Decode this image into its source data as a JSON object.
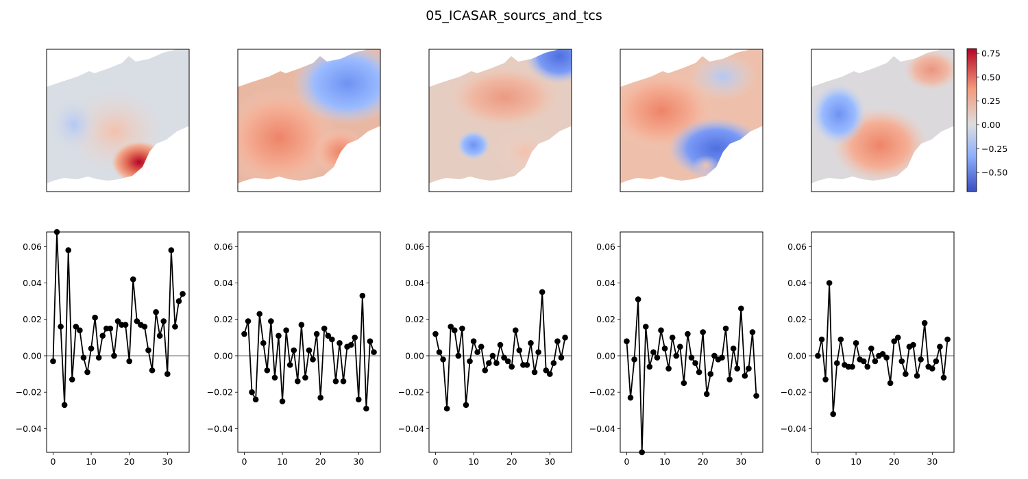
{
  "figure": {
    "title": "05_ICASAR_sourcs_and_tcs"
  },
  "colorbar": {
    "cmap": "coolwarm",
    "vmin": -0.7,
    "vmax": 0.8,
    "ticks": [
      0.75,
      0.5,
      0.25,
      0.0,
      -0.25,
      -0.5
    ],
    "tick_labels": [
      "0.75",
      "0.50",
      "0.25",
      "0.00",
      "−0.25",
      "−0.50"
    ]
  },
  "chart_data": [
    {
      "type": "heatmap",
      "panel": "source map 1",
      "description_of_values": "spatial source, mostly near zero with strong positive blob at lower right",
      "peak_value": 0.8
    },
    {
      "type": "heatmap",
      "panel": "source map 2",
      "peak_value": 0.4
    },
    {
      "type": "heatmap",
      "panel": "source map 3",
      "peak_value": 0.3
    },
    {
      "type": "heatmap",
      "panel": "source map 4",
      "peak_value": 0.4
    },
    {
      "type": "heatmap",
      "panel": "source map 5",
      "peak_value": 0.4
    },
    {
      "type": "line",
      "panel": "time course 1",
      "xlim": [
        -1.7,
        35.7
      ],
      "ylim": [
        -0.053,
        0.068
      ],
      "xticks": [
        0,
        10,
        20,
        30
      ],
      "yticks": [
        0.06,
        0.04,
        0.02,
        0.0,
        -0.02,
        -0.04
      ],
      "ytick_labels": [
        "0.06",
        "0.04",
        "0.02",
        "0.00",
        "−0.02",
        "−0.04"
      ],
      "x": [
        0,
        1,
        2,
        3,
        4,
        5,
        6,
        7,
        8,
        9,
        10,
        11,
        12,
        13,
        14,
        15,
        16,
        17,
        18,
        19,
        20,
        21,
        22,
        23,
        24,
        25,
        26,
        27,
        28,
        29,
        30,
        31,
        32,
        33,
        34
      ],
      "values": [
        -0.003,
        0.068,
        0.016,
        -0.027,
        0.058,
        -0.013,
        0.016,
        0.014,
        -0.001,
        -0.009,
        0.004,
        0.021,
        -0.001,
        0.011,
        0.015,
        0.015,
        0.0,
        0.019,
        0.017,
        0.017,
        -0.003,
        0.042,
        0.019,
        0.017,
        0.016,
        0.003,
        -0.008,
        0.024,
        0.011,
        0.019,
        -0.01,
        0.058,
        0.016,
        0.03,
        0.034
      ]
    },
    {
      "type": "line",
      "panel": "time course 2",
      "xlim": [
        -1.7,
        35.7
      ],
      "ylim": [
        -0.053,
        0.068
      ],
      "xticks": [
        0,
        10,
        20,
        30
      ],
      "yticks": [
        0.06,
        0.04,
        0.02,
        0.0,
        -0.02,
        -0.04
      ],
      "ytick_labels": [
        "0.06",
        "0.04",
        "0.02",
        "0.00",
        "−0.02",
        "−0.04"
      ],
      "x": [
        0,
        1,
        2,
        3,
        4,
        5,
        6,
        7,
        8,
        9,
        10,
        11,
        12,
        13,
        14,
        15,
        16,
        17,
        18,
        19,
        20,
        21,
        22,
        23,
        24,
        25,
        26,
        27,
        28,
        29,
        30,
        31,
        32,
        33,
        34
      ],
      "values": [
        0.012,
        0.019,
        -0.02,
        -0.024,
        0.023,
        0.007,
        -0.008,
        0.019,
        -0.012,
        0.011,
        -0.025,
        0.014,
        -0.005,
        0.003,
        -0.014,
        0.017,
        -0.012,
        0.003,
        -0.002,
        0.012,
        -0.023,
        0.015,
        0.011,
        0.009,
        -0.014,
        0.007,
        -0.014,
        0.005,
        0.006,
        0.01,
        -0.024,
        0.033,
        -0.029,
        0.008,
        0.002
      ]
    },
    {
      "type": "line",
      "panel": "time course 3",
      "xlim": [
        -1.7,
        35.7
      ],
      "ylim": [
        -0.053,
        0.068
      ],
      "xticks": [
        0,
        10,
        20,
        30
      ],
      "yticks": [
        0.06,
        0.04,
        0.02,
        0.0,
        -0.02,
        -0.04
      ],
      "ytick_labels": [
        "0.06",
        "0.04",
        "0.02",
        "0.00",
        "−0.02",
        "−0.04"
      ],
      "x": [
        0,
        1,
        2,
        3,
        4,
        5,
        6,
        7,
        8,
        9,
        10,
        11,
        12,
        13,
        14,
        15,
        16,
        17,
        18,
        19,
        20,
        21,
        22,
        23,
        24,
        25,
        26,
        27,
        28,
        29,
        30,
        31,
        32,
        33,
        34
      ],
      "values": [
        0.012,
        0.002,
        -0.002,
        -0.029,
        0.016,
        0.014,
        0.0,
        0.015,
        -0.027,
        -0.003,
        0.008,
        0.002,
        0.005,
        -0.008,
        -0.004,
        0.0,
        -0.004,
        0.006,
        -0.001,
        -0.003,
        -0.006,
        0.014,
        0.003,
        -0.005,
        -0.005,
        0.007,
        -0.009,
        0.002,
        0.035,
        -0.008,
        -0.01,
        -0.004,
        0.008,
        -0.001,
        0.01
      ]
    },
    {
      "type": "line",
      "panel": "time course 4",
      "xlim": [
        -1.7,
        35.7
      ],
      "ylim": [
        -0.053,
        0.068
      ],
      "xticks": [
        0,
        10,
        20,
        30
      ],
      "yticks": [
        0.06,
        0.04,
        0.02,
        0.0,
        -0.02,
        -0.04
      ],
      "ytick_labels": [
        "0.06",
        "0.04",
        "0.02",
        "0.00",
        "−0.02",
        "−0.04"
      ],
      "x": [
        0,
        1,
        2,
        3,
        4,
        5,
        6,
        7,
        8,
        9,
        10,
        11,
        12,
        13,
        14,
        15,
        16,
        17,
        18,
        19,
        20,
        21,
        22,
        23,
        24,
        25,
        26,
        27,
        28,
        29,
        30,
        31,
        32,
        33,
        34
      ],
      "values": [
        0.008,
        -0.023,
        -0.002,
        0.031,
        -0.053,
        0.016,
        -0.006,
        0.002,
        -0.001,
        0.014,
        0.004,
        -0.007,
        0.01,
        0.0,
        0.005,
        -0.015,
        0.012,
        -0.001,
        -0.004,
        -0.009,
        0.013,
        -0.021,
        -0.01,
        0.0,
        -0.002,
        -0.001,
        0.015,
        -0.013,
        0.004,
        -0.007,
        0.026,
        -0.011,
        -0.007,
        0.013,
        -0.022
      ]
    },
    {
      "type": "line",
      "panel": "time course 5",
      "xlim": [
        -1.7,
        35.7
      ],
      "ylim": [
        -0.053,
        0.068
      ],
      "xticks": [
        0,
        10,
        20,
        30
      ],
      "yticks": [
        0.06,
        0.04,
        0.02,
        0.0,
        -0.02,
        -0.04
      ],
      "ytick_labels": [
        "0.06",
        "0.04",
        "0.02",
        "0.00",
        "−0.02",
        "−0.04"
      ],
      "x": [
        0,
        1,
        2,
        3,
        4,
        5,
        6,
        7,
        8,
        9,
        10,
        11,
        12,
        13,
        14,
        15,
        16,
        17,
        18,
        19,
        20,
        21,
        22,
        23,
        24,
        25,
        26,
        27,
        28,
        29,
        30,
        31,
        32,
        33,
        34
      ],
      "values": [
        0.0,
        0.009,
        -0.013,
        0.04,
        -0.032,
        -0.004,
        0.009,
        -0.005,
        -0.006,
        -0.006,
        0.007,
        -0.002,
        -0.003,
        -0.006,
        0.004,
        -0.003,
        0.0,
        0.001,
        -0.001,
        -0.015,
        0.008,
        0.01,
        -0.003,
        -0.01,
        0.005,
        0.006,
        -0.011,
        -0.002,
        0.018,
        -0.006,
        -0.007,
        -0.003,
        0.005,
        -0.012,
        0.009
      ]
    }
  ]
}
